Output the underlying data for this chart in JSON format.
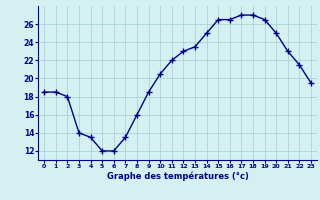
{
  "x": [
    0,
    1,
    2,
    3,
    4,
    5,
    6,
    7,
    8,
    9,
    10,
    11,
    12,
    13,
    14,
    15,
    16,
    17,
    18,
    19,
    20,
    21,
    22,
    23
  ],
  "y": [
    18.5,
    18.5,
    18.0,
    14.0,
    13.5,
    12.0,
    12.0,
    13.5,
    16.0,
    18.5,
    20.5,
    22.0,
    23.0,
    23.5,
    25.0,
    26.5,
    26.5,
    27.0,
    27.0,
    26.5,
    25.0,
    23.0,
    21.5,
    19.5
  ],
  "xlabel": "Graphe des températures (°c)",
  "ylabel_ticks": [
    12,
    14,
    16,
    18,
    20,
    22,
    24,
    26
  ],
  "ylim": [
    11,
    28
  ],
  "xlim": [
    -0.5,
    23.5
  ],
  "bg_color": "#d4f0f0",
  "line_color": "#00008b",
  "grid_color": "#aad4d4",
  "marker": "+",
  "linewidth": 1.0,
  "markersize": 4,
  "markeredgewidth": 1.0,
  "xtick_fontsize": 4.5,
  "ytick_fontsize": 5.5,
  "xlabel_fontsize": 6.0
}
